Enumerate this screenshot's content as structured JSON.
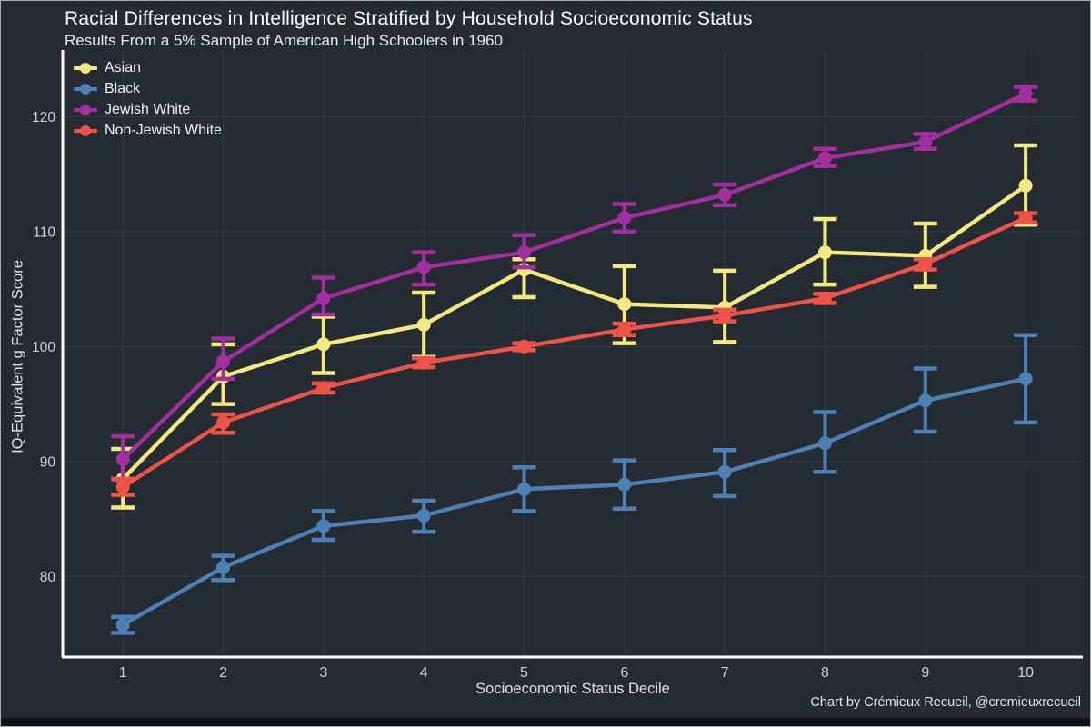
{
  "footer": {
    "credit": "Chart by Crémieux Recueil, @cremieuxrecueil"
  },
  "colors": {
    "background": "#252b33",
    "grid": "#323a43",
    "axis": "#ffffff",
    "tick_text": "#ced3d8",
    "bottom_strip": "#111419"
  },
  "chart_data": {
    "type": "line",
    "title": "Racial Differences in Intelligence Stratified by Household Socioeconomic Status",
    "subtitle": "Results From a 5% Sample of American High Schoolers in 1960",
    "xlabel": "Socioeconomic Status Decile",
    "ylabel": "IQ-Equivalent g Factor Score",
    "x": [
      1,
      2,
      3,
      4,
      5,
      6,
      7,
      8,
      9,
      10
    ],
    "yticks": [
      80,
      90,
      100,
      110,
      120
    ],
    "xlim": [
      0.4,
      10.57
    ],
    "ylim": [
      73.0,
      125.8
    ],
    "grid": true,
    "legend_position": "top-left",
    "error_bars": true,
    "series": [
      {
        "name": "Asian",
        "color": "#f3e97f",
        "values": [
          88.5,
          97.4,
          100.2,
          101.9,
          106.7,
          103.7,
          103.4,
          108.2,
          107.9,
          114.0
        ],
        "err_low": [
          86.0,
          95.0,
          97.7,
          99.1,
          104.3,
          100.3,
          100.4,
          105.4,
          105.2,
          110.6
        ],
        "err_high": [
          91.1,
          100.2,
          102.6,
          104.7,
          107.6,
          107.0,
          106.6,
          111.1,
          110.7,
          117.5
        ]
      },
      {
        "name": "Black",
        "color": "#4d81b6",
        "values": [
          75.8,
          80.8,
          84.4,
          85.3,
          87.6,
          88.0,
          89.1,
          91.6,
          95.3,
          97.2
        ],
        "err_low": [
          75.1,
          79.7,
          83.2,
          83.9,
          85.7,
          85.9,
          87.0,
          89.1,
          92.6,
          93.4
        ],
        "err_high": [
          76.5,
          81.8,
          85.7,
          86.6,
          89.5,
          90.1,
          91.0,
          94.3,
          98.1,
          101.0
        ]
      },
      {
        "name": "Jewish White",
        "color": "#a32f9f",
        "values": [
          90.2,
          98.7,
          104.2,
          106.9,
          108.2,
          111.2,
          113.2,
          116.4,
          117.8,
          122.0
        ],
        "err_low": [
          88.4,
          97.2,
          102.8,
          105.4,
          106.9,
          110.0,
          112.3,
          115.7,
          117.2,
          121.4
        ],
        "err_high": [
          92.2,
          100.7,
          106.0,
          108.2,
          109.7,
          112.4,
          114.1,
          117.2,
          118.5,
          122.6
        ]
      },
      {
        "name": "Non-Jewish White",
        "color": "#ed5347",
        "values": [
          87.8,
          93.4,
          96.4,
          98.6,
          100.0,
          101.5,
          102.7,
          104.2,
          107.2,
          111.2
        ],
        "err_low": [
          87.1,
          92.5,
          96.0,
          98.2,
          99.7,
          101.0,
          102.2,
          103.8,
          106.7,
          110.8
        ],
        "err_high": [
          88.5,
          94.1,
          96.8,
          99.0,
          100.3,
          102.0,
          103.2,
          104.6,
          107.6,
          111.6
        ]
      }
    ]
  }
}
